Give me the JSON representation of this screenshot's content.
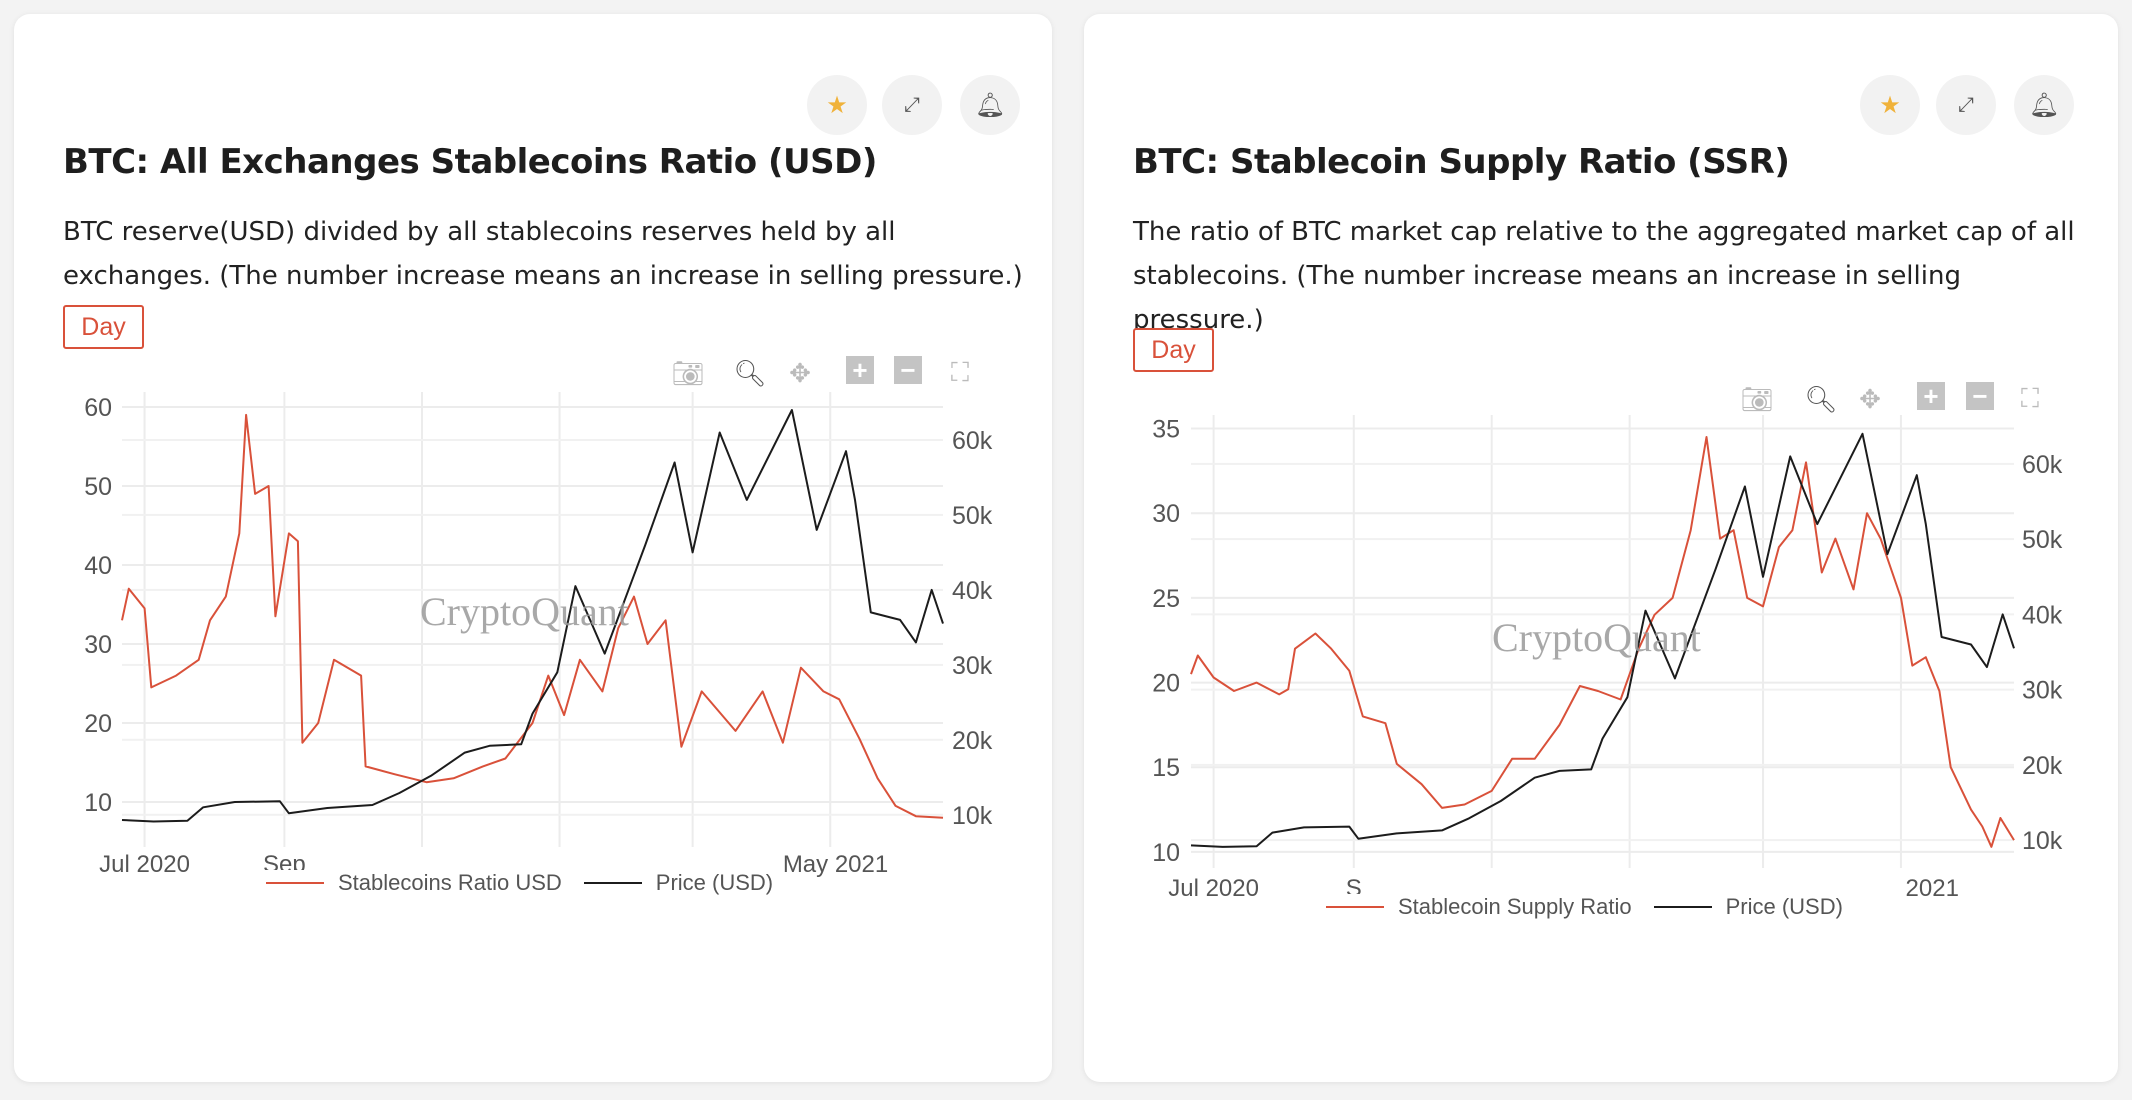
{
  "colors": {
    "ratio": "#d9513a",
    "price": "#1c1c1c",
    "accent": "#d9513a",
    "star": "#f0b23a"
  },
  "toolbar_icons": [
    "camera-icon",
    "zoom-icon",
    "pan-icon",
    "zoom-in-icon",
    "zoom-out-icon",
    "autoscale-icon"
  ],
  "header_icons": [
    "star-icon",
    "expand-icon",
    "bell-icon"
  ],
  "cards": [
    {
      "title": "BTC: All Exchanges Stablecoins Ratio (USD)",
      "description": "BTC reserve(USD) divided by all stablecoins reserves held by all exchanges. (The number increase means an increase in selling pressure.)",
      "interval": "Day",
      "watermark": "CryptoQuant",
      "legend": [
        "Stablecoins Ratio USD",
        "Price (USD)"
      ]
    },
    {
      "title": "BTC: Stablecoin Supply Ratio (SSR)",
      "description": "The ratio of BTC market cap relative to the aggregated market cap of all stablecoins. (The number increase means an increase in selling pressure.)",
      "interval": "Day",
      "watermark": "CryptoQuant",
      "legend": [
        "Stablecoin Supply Ratio",
        "Price (USD)"
      ]
    }
  ],
  "chart_data": [
    {
      "type": "line",
      "title": "BTC: All Exchanges Stablecoins Ratio (USD)",
      "x_ticks": [
        "Jul 2020",
        "Sep",
        "",
        "",
        "",
        "May 2021"
      ],
      "y_left": {
        "range": [
          4.3,
          61.9
        ],
        "ticks": [
          10,
          20,
          30,
          40,
          50,
          60
        ]
      },
      "y_right": {
        "range": [
          5700,
          66400
        ],
        "ticks": [
          "10k",
          "20k",
          "30k",
          "40k",
          "50k",
          "60k"
        ]
      },
      "grid": true,
      "legend": "bottom",
      "series": [
        {
          "name": "Stablecoins Ratio USD",
          "axis": "left",
          "points": [
            [
              "2020-06-21",
              33
            ],
            [
              "2020-06-24",
              37
            ],
            [
              "2020-07-01",
              34.5
            ],
            [
              "2020-07-04",
              24.5
            ],
            [
              "2020-07-15",
              26
            ],
            [
              "2020-07-25",
              28
            ],
            [
              "2020-07-30",
              33
            ],
            [
              "2020-08-06",
              36
            ],
            [
              "2020-08-12",
              44
            ],
            [
              "2020-08-15",
              59
            ],
            [
              "2020-08-19",
              49
            ],
            [
              "2020-08-25",
              50
            ],
            [
              "2020-08-28",
              33.5
            ],
            [
              "2020-09-03",
              44
            ],
            [
              "2020-09-07",
              43
            ],
            [
              "2020-09-09",
              17.5
            ],
            [
              "2020-09-16",
              20
            ],
            [
              "2020-09-23",
              28
            ],
            [
              "2020-10-05",
              26
            ],
            [
              "2020-10-07",
              14.5
            ],
            [
              "2020-10-20",
              13.5
            ],
            [
              "2020-11-03",
              12.5
            ],
            [
              "2020-11-15",
              13
            ],
            [
              "2020-11-28",
              14.5
            ],
            [
              "2020-12-08",
              15.5
            ],
            [
              "2020-12-20",
              20
            ],
            [
              "2020-12-27",
              26
            ],
            [
              "2021-01-03",
              21
            ],
            [
              "2021-01-10",
              28
            ],
            [
              "2021-01-20",
              24
            ],
            [
              "2021-01-27",
              32
            ],
            [
              "2021-02-03",
              36
            ],
            [
              "2021-02-09",
              30
            ],
            [
              "2021-02-17",
              33
            ],
            [
              "2021-02-24",
              17
            ],
            [
              "2021-03-05",
              24
            ],
            [
              "2021-03-20",
              19
            ],
            [
              "2021-04-01",
              24
            ],
            [
              "2021-04-10",
              17.5
            ],
            [
              "2021-04-18",
              27
            ],
            [
              "2021-04-28",
              24
            ],
            [
              "2021-05-05",
              23
            ],
            [
              "2021-05-14",
              18
            ],
            [
              "2021-05-22",
              13
            ],
            [
              "2021-05-30",
              9.5
            ],
            [
              "2021-06-08",
              8.2
            ],
            [
              "2021-06-20",
              8
            ]
          ]
        },
        {
          "name": "Price (USD)",
          "axis": "right",
          "points": [
            [
              "2020-06-21",
              9300
            ],
            [
              "2020-07-05",
              9100
            ],
            [
              "2020-07-20",
              9200
            ],
            [
              "2020-07-27",
              11000
            ],
            [
              "2020-08-10",
              11700
            ],
            [
              "2020-08-30",
              11800
            ],
            [
              "2020-09-03",
              10200
            ],
            [
              "2020-09-20",
              10900
            ],
            [
              "2020-10-10",
              11300
            ],
            [
              "2020-10-22",
              12900
            ],
            [
              "2020-11-05",
              15200
            ],
            [
              "2020-11-20",
              18300
            ],
            [
              "2020-12-01",
              19200
            ],
            [
              "2020-12-15",
              19400
            ],
            [
              "2020-12-20",
              23500
            ],
            [
              "2020-12-31",
              29000
            ],
            [
              "2021-01-08",
              40500
            ],
            [
              "2021-01-21",
              31500
            ],
            [
              "2021-02-08",
              46000
            ],
            [
              "2021-02-21",
              57000
            ],
            [
              "2021-03-01",
              45000
            ],
            [
              "2021-03-13",
              61000
            ],
            [
              "2021-03-25",
              52000
            ],
            [
              "2021-04-14",
              64000
            ],
            [
              "2021-04-25",
              48000
            ],
            [
              "2021-05-08",
              58500
            ],
            [
              "2021-05-12",
              52000
            ],
            [
              "2021-05-19",
              37000
            ],
            [
              "2021-06-01",
              36000
            ],
            [
              "2021-06-08",
              33000
            ],
            [
              "2021-06-15",
              40000
            ],
            [
              "2021-06-20",
              35500
            ]
          ]
        }
      ]
    },
    {
      "type": "line",
      "title": "BTC: Stablecoin Supply Ratio (SSR)",
      "x_ticks": [
        "Jul 2020",
        "S",
        "",
        "",
        "",
        "2021"
      ],
      "y_left": {
        "range": [
          9.05,
          35.8
        ],
        "ticks": [
          10,
          15,
          20,
          25,
          30,
          35
        ]
      },
      "y_right": {
        "range": [
          6300,
          66500
        ],
        "ticks": [
          "10k",
          "20k",
          "30k",
          "40k",
          "50k",
          "60k"
        ]
      },
      "grid": true,
      "legend": "bottom",
      "series": [
        {
          "name": "Stablecoin Supply Ratio",
          "axis": "left",
          "points": [
            [
              "2020-06-21",
              20.5
            ],
            [
              "2020-06-24",
              21.6
            ],
            [
              "2020-07-01",
              20.3
            ],
            [
              "2020-07-10",
              19.5
            ],
            [
              "2020-07-20",
              20
            ],
            [
              "2020-07-30",
              19.3
            ],
            [
              "2020-08-03",
              19.6
            ],
            [
              "2020-08-06",
              22
            ],
            [
              "2020-08-15",
              22.9
            ],
            [
              "2020-08-22",
              22
            ],
            [
              "2020-08-30",
              20.7
            ],
            [
              "2020-09-05",
              18
            ],
            [
              "2020-09-15",
              17.6
            ],
            [
              "2020-09-20",
              15.2
            ],
            [
              "2020-10-01",
              14
            ],
            [
              "2020-10-10",
              12.6
            ],
            [
              "2020-10-20",
              12.8
            ],
            [
              "2020-11-01",
              13.6
            ],
            [
              "2020-11-10",
              15.5
            ],
            [
              "2020-11-20",
              15.5
            ],
            [
              "2020-12-01",
              17.5
            ],
            [
              "2020-12-10",
              19.8
            ],
            [
              "2020-12-18",
              19.5
            ],
            [
              "2020-12-28",
              19
            ],
            [
              "2021-01-05",
              22
            ],
            [
              "2021-01-12",
              24
            ],
            [
              "2021-01-20",
              25
            ],
            [
              "2021-01-28",
              29
            ],
            [
              "2021-02-04",
              34.5
            ],
            [
              "2021-02-10",
              28.5
            ],
            [
              "2021-02-16",
              29
            ],
            [
              "2021-02-22",
              25
            ],
            [
              "2021-03-01",
              24.5
            ],
            [
              "2021-03-08",
              28
            ],
            [
              "2021-03-14",
              29
            ],
            [
              "2021-03-20",
              33
            ],
            [
              "2021-03-27",
              26.5
            ],
            [
              "2021-04-02",
              28.5
            ],
            [
              "2021-04-10",
              25.5
            ],
            [
              "2021-04-16",
              30
            ],
            [
              "2021-04-22",
              28.5
            ],
            [
              "2021-05-01",
              25
            ],
            [
              "2021-05-06",
              21
            ],
            [
              "2021-05-12",
              21.5
            ],
            [
              "2021-05-18",
              19.5
            ],
            [
              "2021-05-23",
              15
            ],
            [
              "2021-06-01",
              12.5
            ],
            [
              "2021-06-06",
              11.5
            ],
            [
              "2021-06-10",
              10.3
            ],
            [
              "2021-06-14",
              12
            ],
            [
              "2021-06-20",
              10.7
            ]
          ]
        },
        {
          "name": "Price (USD)",
          "axis": "right",
          "points": [
            [
              "2020-06-21",
              9300
            ],
            [
              "2020-07-05",
              9100
            ],
            [
              "2020-07-20",
              9200
            ],
            [
              "2020-07-27",
              11000
            ],
            [
              "2020-08-10",
              11700
            ],
            [
              "2020-08-30",
              11800
            ],
            [
              "2020-09-03",
              10200
            ],
            [
              "2020-09-20",
              10900
            ],
            [
              "2020-10-10",
              11300
            ],
            [
              "2020-10-22",
              12900
            ],
            [
              "2020-11-05",
              15200
            ],
            [
              "2020-11-20",
              18300
            ],
            [
              "2020-12-01",
              19200
            ],
            [
              "2020-12-15",
              19400
            ],
            [
              "2020-12-20",
              23500
            ],
            [
              "2020-12-31",
              29000
            ],
            [
              "2021-01-08",
              40500
            ],
            [
              "2021-01-21",
              31500
            ],
            [
              "2021-02-08",
              46000
            ],
            [
              "2021-02-21",
              57000
            ],
            [
              "2021-03-01",
              45000
            ],
            [
              "2021-03-13",
              61000
            ],
            [
              "2021-03-25",
              52000
            ],
            [
              "2021-04-14",
              64000
            ],
            [
              "2021-04-25",
              48000
            ],
            [
              "2021-05-08",
              58500
            ],
            [
              "2021-05-12",
              52000
            ],
            [
              "2021-05-19",
              37000
            ],
            [
              "2021-06-01",
              36000
            ],
            [
              "2021-06-08",
              33000
            ],
            [
              "2021-06-15",
              40000
            ],
            [
              "2021-06-20",
              35500
            ]
          ]
        }
      ]
    }
  ]
}
